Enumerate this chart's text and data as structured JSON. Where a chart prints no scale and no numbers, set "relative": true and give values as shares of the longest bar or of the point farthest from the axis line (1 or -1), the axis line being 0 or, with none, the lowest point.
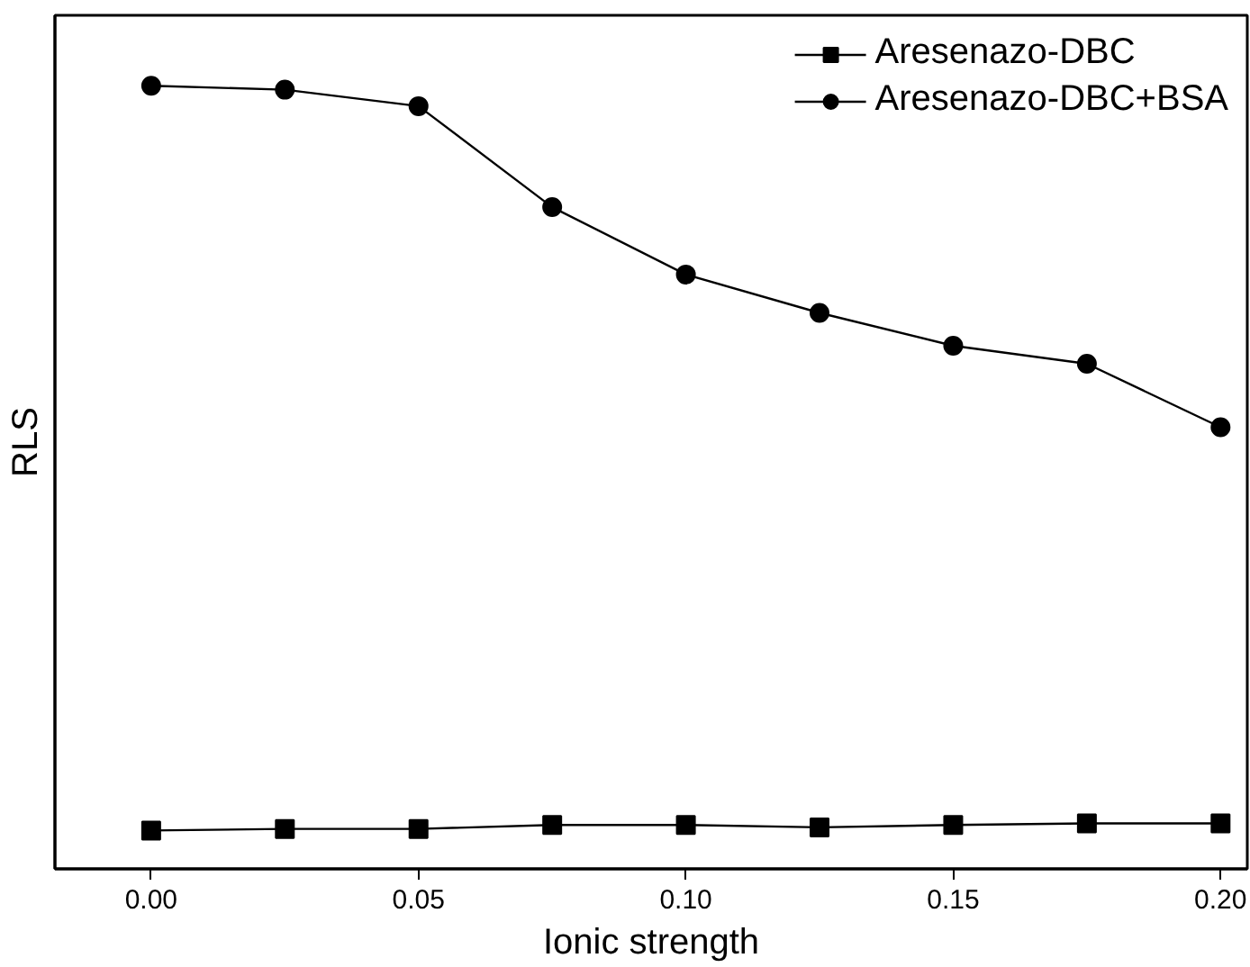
{
  "chart_data": {
    "type": "line",
    "xlabel": "Ionic strength",
    "ylabel": "RLS",
    "relative": true,
    "x": [
      0.0,
      0.025,
      0.05,
      0.075,
      0.1,
      0.125,
      0.15,
      0.175,
      0.2
    ],
    "xlim": [
      -0.018,
      0.205
    ],
    "xticks": [
      {
        "value": 0.0,
        "label": "0.00"
      },
      {
        "value": 0.05,
        "label": "0.05"
      },
      {
        "value": 0.1,
        "label": "0.10"
      },
      {
        "value": 0.15,
        "label": "0.15"
      },
      {
        "value": 0.2,
        "label": "0.20"
      }
    ],
    "series": [
      {
        "name": "Aresenazo-DBC",
        "color": "#000000",
        "marker": "square",
        "values": [
          0.049,
          0.051,
          0.051,
          0.056,
          0.056,
          0.053,
          0.056,
          0.058,
          0.058
        ]
      },
      {
        "name": "Aresenazo-DBC+BSA",
        "color": "#000000",
        "marker": "circle",
        "values": [
          1.0,
          0.995,
          0.974,
          0.845,
          0.759,
          0.71,
          0.668,
          0.645,
          0.564
        ]
      }
    ],
    "legend": "top right",
    "grid": false,
    "line_style": "solid"
  }
}
